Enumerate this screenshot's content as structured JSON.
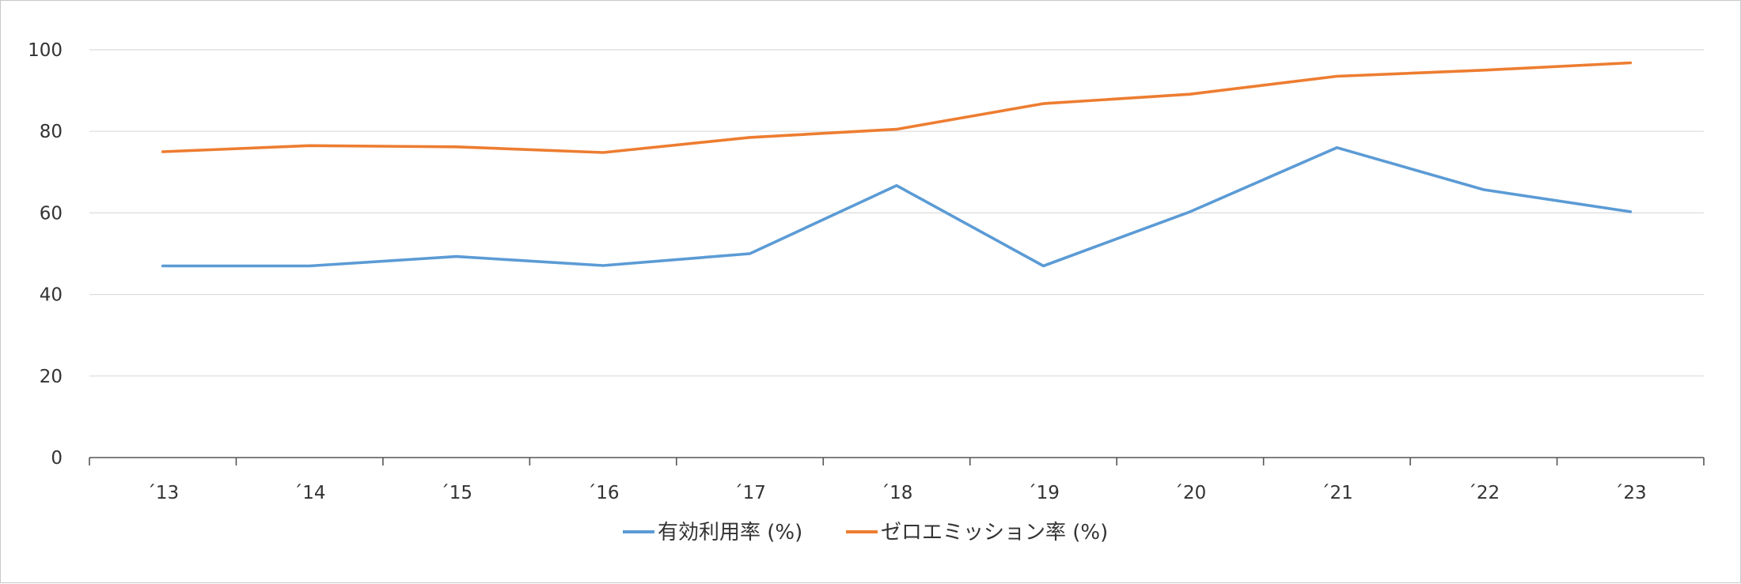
{
  "chart_data": {
    "type": "line",
    "categories": [
      "´13",
      "´14",
      "´15",
      "´16",
      "´17",
      "´18",
      "´19",
      "´20",
      "´21",
      "´22",
      "´23"
    ],
    "series": [
      {
        "name": "有効利用率 (%)",
        "color": "#5b9bd5",
        "values": [
          47,
          47,
          49.3,
          47.1,
          50,
          66.7,
          47,
          60.3,
          76,
          65.7,
          60.3
        ]
      },
      {
        "name": "ゼロエミッション率 (%)",
        "color": "#ed7d31",
        "values": [
          75,
          76.5,
          76.2,
          74.8,
          78.5,
          80.5,
          86.8,
          89.1,
          93.5,
          95,
          96.8
        ]
      }
    ],
    "ylim": [
      0,
      100
    ],
    "yticks": [
      0,
      20,
      40,
      60,
      80,
      100
    ],
    "grid": true,
    "legend_position": "bottom",
    "title": "",
    "xlabel": "",
    "ylabel": ""
  }
}
